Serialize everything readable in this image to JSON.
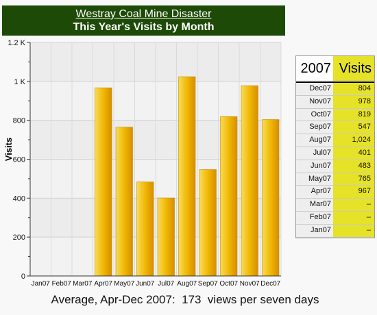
{
  "header": {
    "title": "Westray Coal Mine Disaster",
    "subtitle": "This Year's Visits by Month"
  },
  "footer": {
    "summary": "Average, Apr-Dec 2007:  173  views per seven days"
  },
  "colors": {
    "title_bg": "#1d4a06",
    "bar_light": "#f7d23a",
    "bar_dark": "#d99400",
    "table_value_bg": "#e6e227"
  },
  "chart_data": {
    "type": "bar",
    "title": "This Year's Visits by Month",
    "xlabel": "",
    "ylabel": "Visits",
    "ylim": [
      0,
      1200
    ],
    "yticks": [
      0,
      200,
      400,
      600,
      800,
      1000,
      1200
    ],
    "ytick_labels": [
      "0",
      "200",
      "400",
      "600",
      "800",
      "1 K",
      "1.2 K"
    ],
    "grid": true,
    "categories": [
      "Jan07",
      "Feb07",
      "Mar07",
      "Apr07",
      "May07",
      "Jun07",
      "Jul07",
      "Aug07",
      "Sep07",
      "Oct07",
      "Nov07",
      "Dec07"
    ],
    "values": [
      null,
      null,
      null,
      967,
      765,
      483,
      401,
      1024,
      547,
      819,
      978,
      804
    ]
  },
  "table": {
    "header_year": "2007",
    "header_label": "Visits",
    "rows": [
      {
        "month": "Dec07",
        "value": "804"
      },
      {
        "month": "Nov07",
        "value": "978"
      },
      {
        "month": "Oct07",
        "value": "819"
      },
      {
        "month": "Sep07",
        "value": "547"
      },
      {
        "month": "Aug07",
        "value": "1,024"
      },
      {
        "month": "Jul07",
        "value": "401"
      },
      {
        "month": "Jun07",
        "value": "483"
      },
      {
        "month": "May07",
        "value": "765"
      },
      {
        "month": "Apr07",
        "value": "967"
      },
      {
        "month": "Mar07",
        "value": "–"
      },
      {
        "month": "Feb07",
        "value": "–"
      },
      {
        "month": "Jan07",
        "value": "–"
      }
    ]
  }
}
